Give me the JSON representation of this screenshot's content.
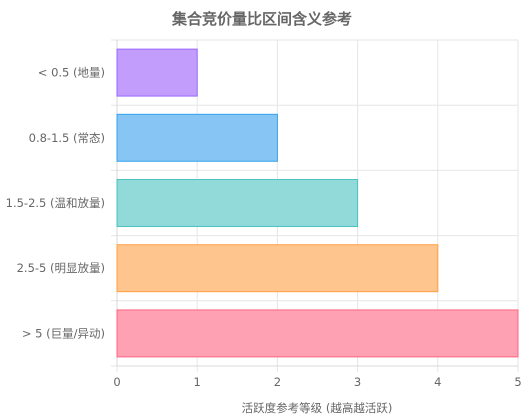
{
  "chart_data": {
    "type": "bar",
    "orientation": "horizontal",
    "title": "集合竞价量比区间含义参考",
    "xlabel": "活跃度参考等级 (越高越活跃)",
    "ylabel": "",
    "xlim": [
      0,
      5
    ],
    "x_ticks": [
      "0",
      "1",
      "2",
      "3",
      "4",
      "5"
    ],
    "grid": true,
    "legend": "none",
    "categories": [
      "< 0.5 (地量)",
      "0.8-1.5 (常态)",
      "1.5-2.5 (温和放量)",
      "2.5-5 (明显放量)",
      "> 5 (巨量/异动)"
    ],
    "values": [
      1,
      2,
      3,
      4,
      5
    ],
    "fill_colors": [
      "#c29dfb",
      "#87c5f4",
      "#92d9da",
      "#fec58f",
      "#fea2b3"
    ],
    "border_colors": [
      "#9966ff",
      "#36a2eb",
      "#4bc0c0",
      "#ff9f40",
      "#ff6384"
    ]
  }
}
